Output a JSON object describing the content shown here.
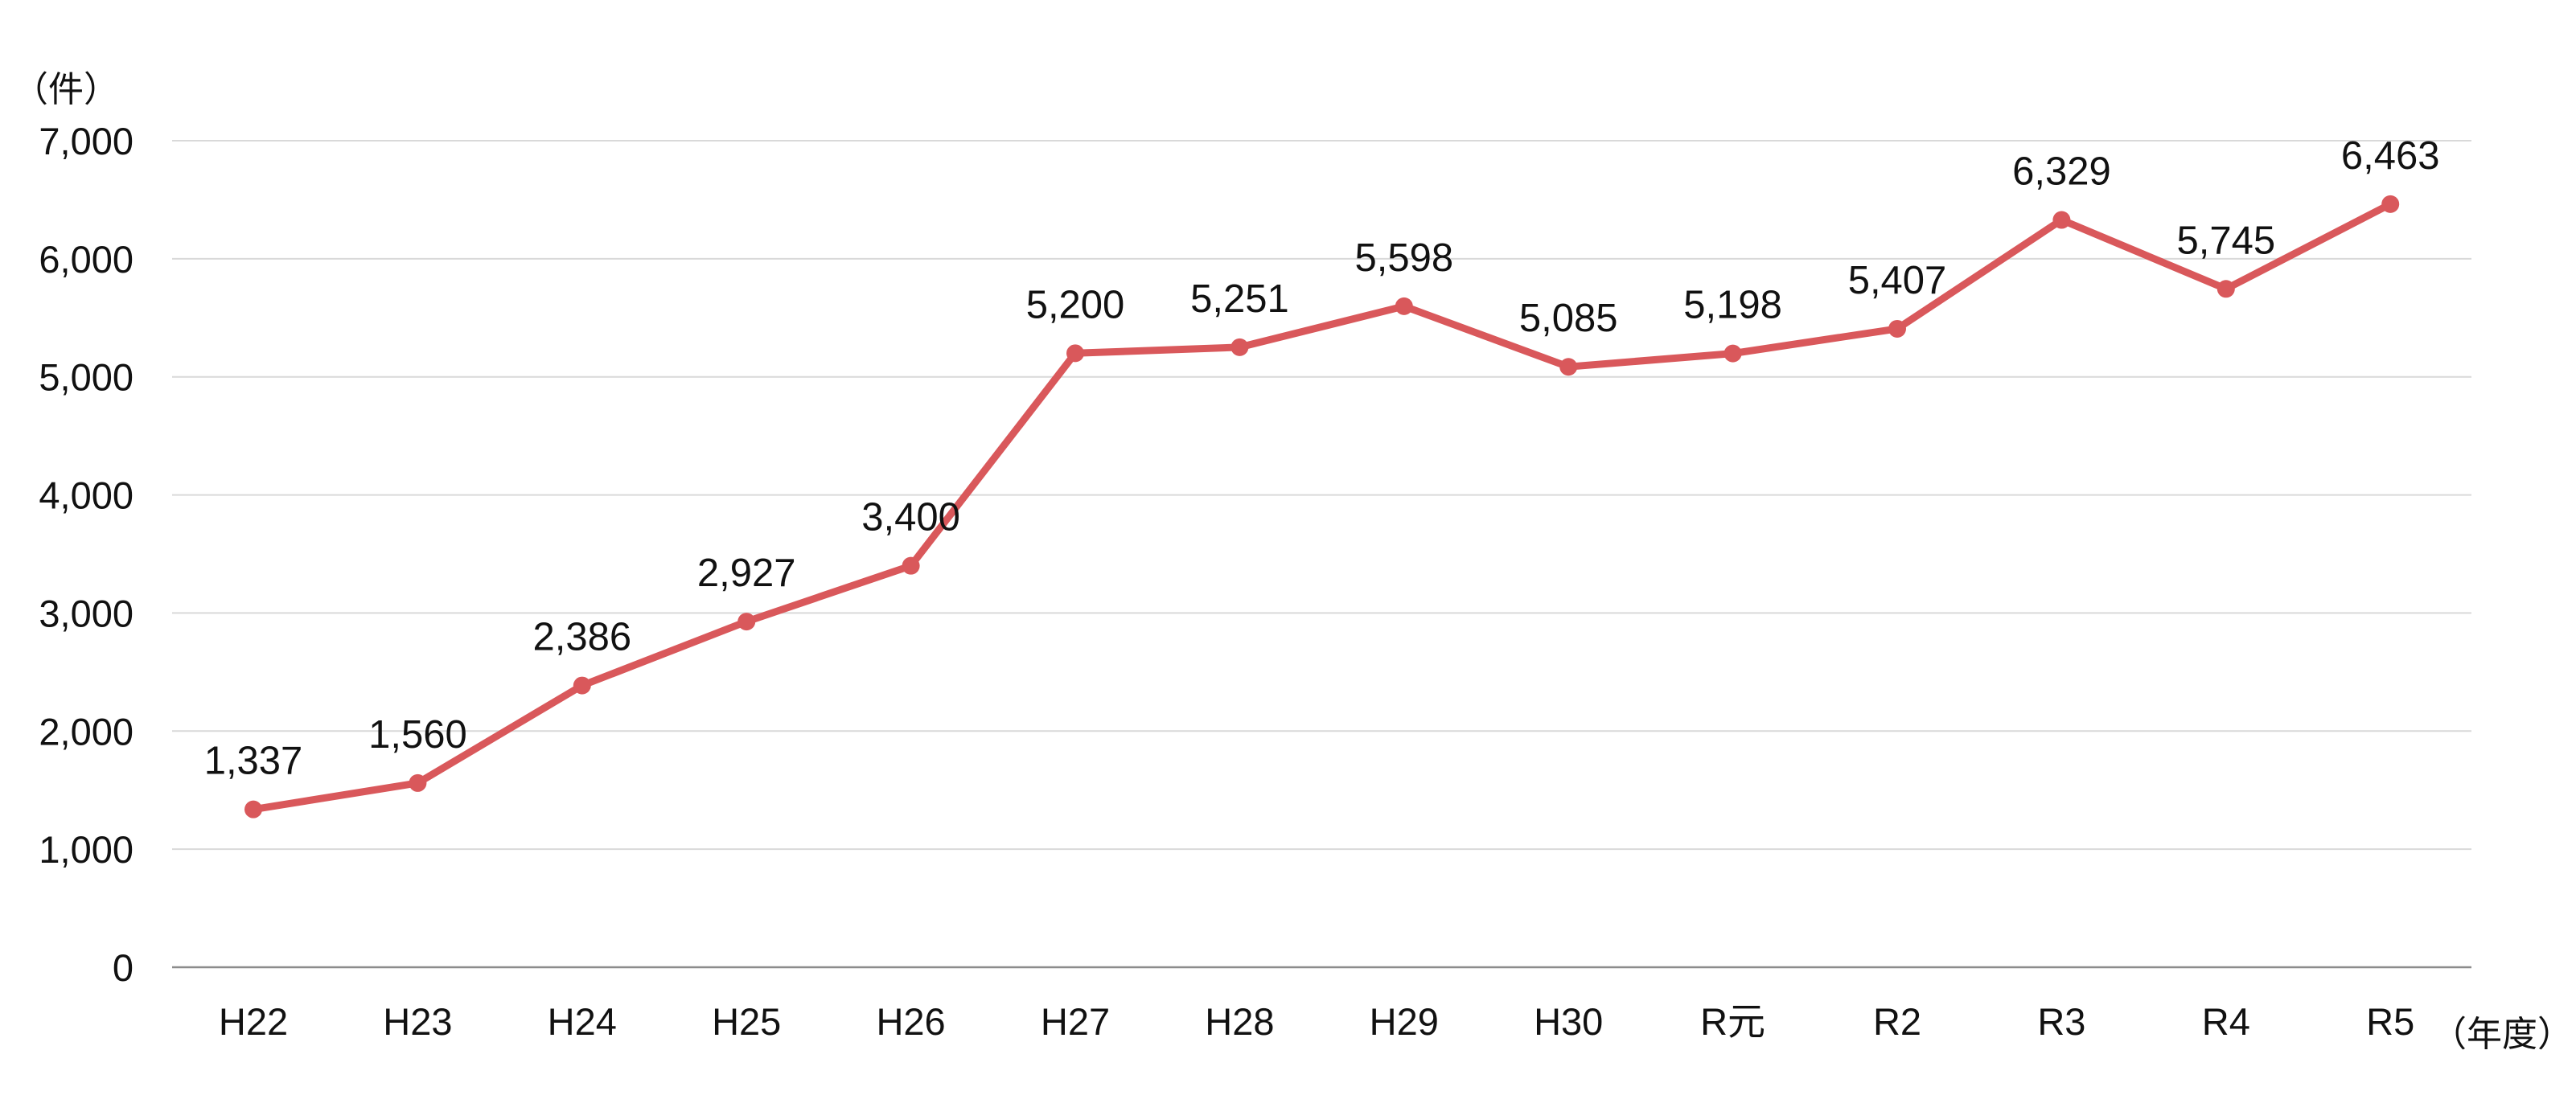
{
  "chart_data": {
    "type": "line",
    "title": "",
    "y_unit_label": "（件）",
    "x_unit_label": "（年度）",
    "categories": [
      "H22",
      "H23",
      "H24",
      "H25",
      "H26",
      "H27",
      "H28",
      "H29",
      "H30",
      "R元",
      "R2",
      "R3",
      "R4",
      "R5"
    ],
    "series": [
      {
        "values": [
          1337,
          1560,
          2386,
          2927,
          3400,
          5200,
          5251,
          5598,
          5085,
          5198,
          5407,
          6329,
          5745,
          6463
        ],
        "value_labels": [
          "1,337",
          "1,560",
          "2,386",
          "2,927",
          "3,400",
          "5,200",
          "5,251",
          "5,598",
          "5,085",
          "5,198",
          "5,407",
          "6,329",
          "5,745",
          "6,463"
        ],
        "color": "#d9585b",
        "marker": "circle"
      }
    ],
    "ylim": [
      0,
      7000
    ],
    "y_ticks": [
      0,
      1000,
      2000,
      3000,
      4000,
      5000,
      6000,
      7000
    ],
    "y_tick_labels": [
      "0",
      "1,000",
      "2,000",
      "3,000",
      "4,000",
      "5,000",
      "6,000",
      "7,000"
    ],
    "grid": true,
    "gridline_color": "#d9d9d9",
    "axis_color": "#8c8c8c",
    "legend": "none"
  }
}
